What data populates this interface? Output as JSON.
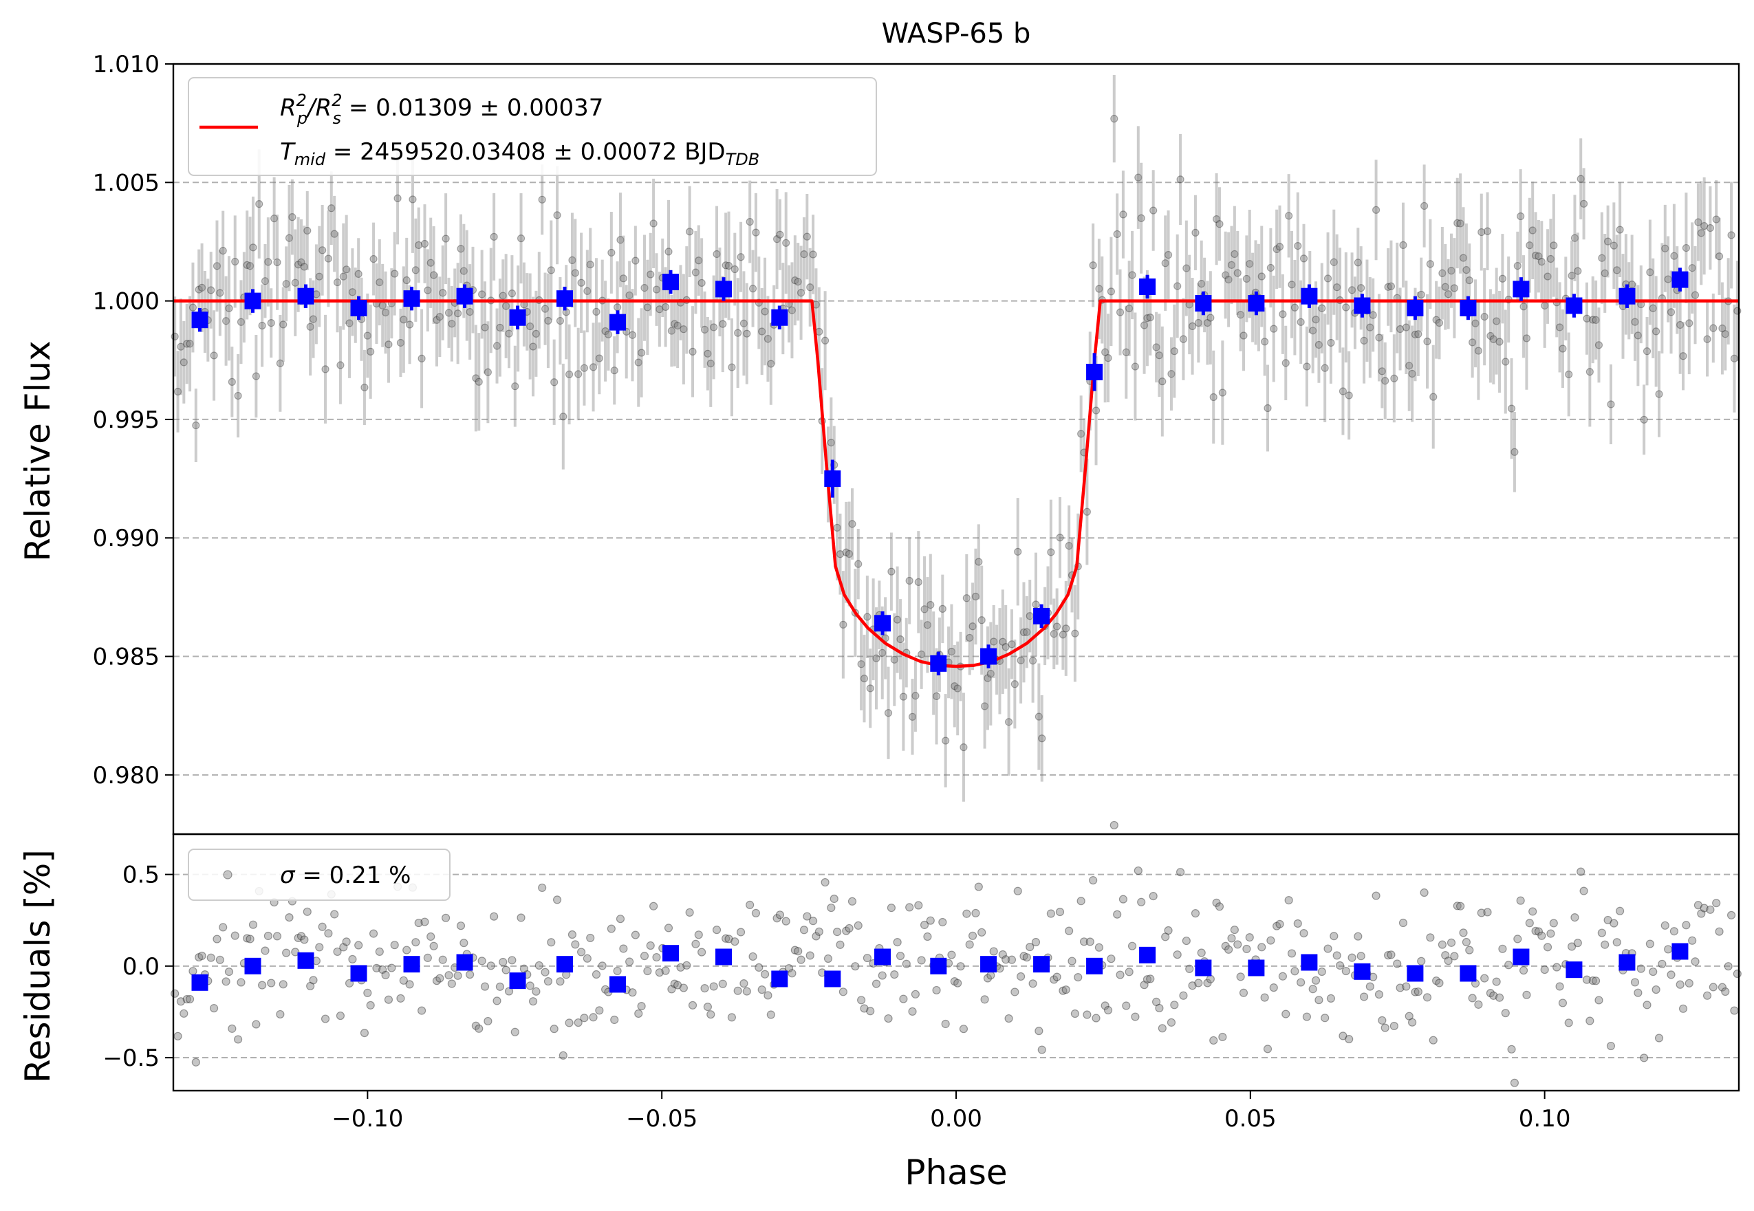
{
  "chart_data": [
    {
      "type": "scatter",
      "panel": "light-curve",
      "title": "WASP-65 b",
      "xlabel": "Phase",
      "ylabel": "Relative Flux",
      "xlim": [
        -0.133,
        0.133
      ],
      "ylim": [
        0.9775,
        1.01
      ],
      "yticks": [
        0.98,
        0.985,
        0.99,
        0.995,
        1.0,
        1.005,
        1.01
      ],
      "ytick_labels": [
        "0.980",
        "0.985",
        "0.990",
        "0.995",
        "1.000",
        "1.005",
        "1.010"
      ],
      "grid": "horizontal dashed",
      "legend": {
        "placement": "top-left",
        "line1_pre": "R",
        "line1_sub1": "p",
        "line1_sup1": "2",
        "line1_mid": "/R",
        "line1_sub2": "s",
        "line1_sup2": "2",
        "line1_value": " = 0.01309 ± 0.00037",
        "line2_pre": "T",
        "line2_sub": "mid",
        "line2_value": " = 2459520.03408 ± 0.00072 BJD",
        "line2_unit_sub": "TDB"
      },
      "model": {
        "name": "transit model",
        "color": "#ff0000",
        "baseline": 1.0,
        "depth_min": 0.98455,
        "t14_half": 0.0245,
        "t23_half": 0.0205,
        "points": [
          [
            -0.133,
            1.0
          ],
          [
            -0.0245,
            1.0
          ],
          [
            -0.0235,
            0.9975
          ],
          [
            -0.022,
            0.993
          ],
          [
            -0.0205,
            0.9888
          ],
          [
            -0.019,
            0.9876
          ],
          [
            -0.017,
            0.9868
          ],
          [
            -0.015,
            0.9862
          ],
          [
            -0.012,
            0.98555
          ],
          [
            -0.009,
            0.9851
          ],
          [
            -0.006,
            0.98478
          ],
          [
            -0.003,
            0.98462
          ],
          [
            0.0,
            0.98458
          ],
          [
            0.003,
            0.98462
          ],
          [
            0.006,
            0.98478
          ],
          [
            0.009,
            0.9851
          ],
          [
            0.012,
            0.98555
          ],
          [
            0.015,
            0.9862
          ],
          [
            0.017,
            0.9868
          ],
          [
            0.019,
            0.9876
          ],
          [
            0.0205,
            0.9888
          ],
          [
            0.022,
            0.993
          ],
          [
            0.0235,
            0.9975
          ],
          [
            0.0245,
            1.0
          ],
          [
            0.133,
            1.0
          ]
        ]
      },
      "binned": {
        "color": "#0000ff",
        "phase": [
          -0.1285,
          -0.1195,
          -0.1105,
          -0.1015,
          -0.0925,
          -0.0835,
          -0.0745,
          -0.0665,
          -0.0575,
          -0.0485,
          -0.0395,
          -0.03,
          -0.021,
          -0.0125,
          -0.003,
          0.0055,
          0.0145,
          0.0235,
          0.0325,
          0.042,
          0.051,
          0.06,
          0.069,
          0.078,
          0.087,
          0.096,
          0.105,
          0.114,
          0.123
        ],
        "flux": [
          0.9992,
          1.0,
          1.0002,
          0.9997,
          1.0001,
          1.0002,
          0.9993,
          1.0001,
          0.9991,
          1.0008,
          1.0005,
          0.9993,
          0.9925,
          0.9864,
          0.9847,
          0.985,
          0.9867,
          0.997,
          1.0006,
          0.9999,
          0.9999,
          1.0002,
          0.9998,
          0.9997,
          0.9997,
          1.0005,
          0.9998,
          1.0002,
          1.0009
        ],
        "err": [
          0.0005,
          0.0005,
          0.0005,
          0.0005,
          0.0005,
          0.0005,
          0.0005,
          0.0005,
          0.0005,
          0.0005,
          0.0005,
          0.0005,
          0.0008,
          0.0005,
          0.0005,
          0.0005,
          0.0005,
          0.0008,
          0.0005,
          0.0005,
          0.0005,
          0.0005,
          0.0005,
          0.0005,
          0.0005,
          0.0005,
          0.0005,
          0.0005,
          0.0005
        ]
      },
      "raw": {
        "color": "#808080",
        "n_points": 520,
        "scatter_std": 0.0021,
        "error_bar": 0.0018
      }
    },
    {
      "type": "scatter",
      "panel": "residuals",
      "xlabel": "Phase",
      "ylabel": "Residuals [%]",
      "xlim": [
        -0.133,
        0.133
      ],
      "ylim": [
        -0.68,
        0.72
      ],
      "yticks": [
        -0.5,
        0.0,
        0.5
      ],
      "ytick_labels": [
        "−0.5",
        "0.0",
        "0.5"
      ],
      "xticks": [
        -0.1,
        -0.05,
        0.0,
        0.05,
        0.1
      ],
      "xtick_labels": [
        "−0.10",
        "−0.05",
        "0.00",
        "0.05",
        "0.10"
      ],
      "grid": "horizontal dashed",
      "legend": {
        "placement": "top-left",
        "sigma_symbol": "σ",
        "sigma_text": " = 0.21 %"
      },
      "binned_residuals": [
        -0.09,
        0.0,
        0.03,
        -0.04,
        0.01,
        0.02,
        -0.08,
        0.01,
        -0.1,
        0.07,
        0.05,
        -0.07,
        -0.07,
        0.05,
        0.0,
        0.01,
        0.01,
        0.0,
        0.06,
        -0.01,
        -0.01,
        0.02,
        -0.03,
        -0.04,
        -0.04,
        0.05,
        -0.02,
        0.02,
        0.08
      ]
    }
  ]
}
